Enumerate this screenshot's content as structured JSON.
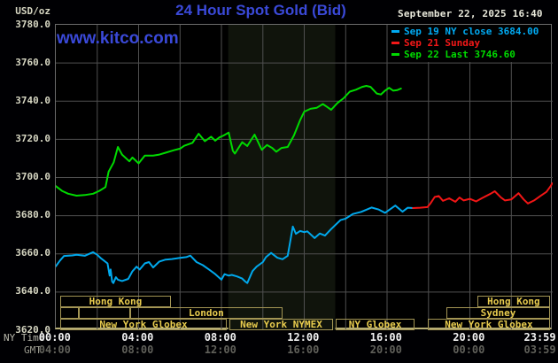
{
  "header": {
    "units_label": "USD/oz",
    "title": "24 Hour Spot Gold (Bid)",
    "datetime": "September 22, 2025 16:40",
    "watermark": "www.kitco.com"
  },
  "legend": [
    {
      "label": "Sep 19 NY close 3684.00",
      "color": "#00aaf2"
    },
    {
      "label": "Sep 21 Sunday",
      "color": "#f21818"
    },
    {
      "label": "Sep 22 Last 3746.60",
      "color": "#00db00"
    }
  ],
  "x_axis": {
    "ny_label": "NY Time",
    "gmt_label": "GMT",
    "ny_ticks": [
      {
        "hour": 0,
        "label": "00:00"
      },
      {
        "hour": 4,
        "label": "04:00"
      },
      {
        "hour": 8,
        "label": "08:00"
      },
      {
        "hour": 12,
        "label": "12:00"
      },
      {
        "hour": 16,
        "label": "16:00"
      },
      {
        "hour": 20,
        "label": "20:00"
      },
      {
        "hour": 23.983,
        "label": "23:59"
      }
    ],
    "gmt_ticks": [
      {
        "hour": 0,
        "label": "04:00"
      },
      {
        "hour": 4,
        "label": "08:00"
      },
      {
        "hour": 8,
        "label": "12:00"
      },
      {
        "hour": 12,
        "label": "16:00"
      },
      {
        "hour": 16,
        "label": "20:00"
      },
      {
        "hour": 20,
        "label": "00:00"
      },
      {
        "hour": 23.983,
        "label": "03:59"
      }
    ]
  },
  "sessions": [
    {
      "row": 0,
      "label": "Hong Kong",
      "start": 0.21,
      "end": 5.56
    },
    {
      "row": 0,
      "label": "Hong Kong",
      "start": 20.36,
      "end": 23.87
    },
    {
      "row": 1,
      "label": "",
      "start": 0.21,
      "end": 1.11
    },
    {
      "row": 1,
      "label": "",
      "start": 1.11,
      "end": 3.59
    },
    {
      "row": 1,
      "label": "London",
      "start": 3.59,
      "end": 10.95
    },
    {
      "row": 1,
      "label": "Sydney",
      "start": 18.87,
      "end": 23.87
    },
    {
      "row": 2,
      "label": "New York Globex",
      "start": 0.21,
      "end": 8.26
    },
    {
      "row": 2,
      "label": "New York NYMEX",
      "start": 8.39,
      "end": 13.39
    },
    {
      "row": 2,
      "label": "NY Globex",
      "start": 13.52,
      "end": 17.33
    },
    {
      "row": 2,
      "label": "New York Globex",
      "start": 17.97,
      "end": 23.87
    }
  ],
  "chart_data": {
    "type": "line",
    "title": "24 Hour Spot Gold (Bid)",
    "ylabel": "USD/oz",
    "ylim": [
      3620,
      3780
    ],
    "y_tick_step": 20,
    "xlim_hours": [
      0,
      24
    ],
    "x_gridline_step_hours": 2,
    "grid_color": "#4f4f4f",
    "highlight_band_hours": [
      8.33,
      13.5
    ],
    "highlight_band_color": "#10140c",
    "legend_position": "top-right",
    "series": [
      {
        "name": "Sep 19 NY close 3684.00",
        "color": "#00a8ec",
        "points": [
          [
            0.0,
            3653.5
          ],
          [
            0.2,
            3656.5
          ],
          [
            0.4,
            3658.9
          ],
          [
            0.8,
            3659.2
          ],
          [
            1.0,
            3659.5
          ],
          [
            1.4,
            3659.0
          ],
          [
            1.8,
            3660.9
          ],
          [
            2.0,
            3659.5
          ],
          [
            2.2,
            3657.5
          ],
          [
            2.5,
            3655.0
          ],
          [
            2.6,
            3648.6
          ],
          [
            2.65,
            3651.8
          ],
          [
            2.72,
            3645.5
          ],
          [
            2.78,
            3644.7
          ],
          [
            2.9,
            3647.8
          ],
          [
            3.0,
            3646.5
          ],
          [
            3.2,
            3645.8
          ],
          [
            3.5,
            3646.9
          ],
          [
            3.7,
            3650.9
          ],
          [
            3.9,
            3653.3
          ],
          [
            4.05,
            3651.8
          ],
          [
            4.3,
            3655.0
          ],
          [
            4.5,
            3655.7
          ],
          [
            4.7,
            3652.9
          ],
          [
            5.0,
            3656.0
          ],
          [
            5.3,
            3657.0
          ],
          [
            5.6,
            3657.3
          ],
          [
            6.0,
            3657.9
          ],
          [
            6.3,
            3658.3
          ],
          [
            6.5,
            3659.1
          ],
          [
            6.8,
            3655.7
          ],
          [
            7.1,
            3654.1
          ],
          [
            7.4,
            3651.8
          ],
          [
            7.7,
            3649.4
          ],
          [
            8.0,
            3646.5
          ],
          [
            8.15,
            3649.4
          ],
          [
            8.35,
            3648.6
          ],
          [
            8.5,
            3649.0
          ],
          [
            8.75,
            3648.2
          ],
          [
            9.0,
            3647.1
          ],
          [
            9.15,
            3645.5
          ],
          [
            9.25,
            3644.7
          ],
          [
            9.5,
            3651.0
          ],
          [
            9.7,
            3653.3
          ],
          [
            10.0,
            3655.7
          ],
          [
            10.15,
            3658.3
          ],
          [
            10.4,
            3660.5
          ],
          [
            10.7,
            3658.0
          ],
          [
            10.95,
            3657.2
          ],
          [
            11.2,
            3659.0
          ],
          [
            11.3,
            3665.0
          ],
          [
            11.45,
            3674.3
          ],
          [
            11.6,
            3670.5
          ],
          [
            11.8,
            3672.0
          ],
          [
            12.0,
            3671.4
          ],
          [
            12.15,
            3671.8
          ],
          [
            12.5,
            3668.3
          ],
          [
            12.75,
            3670.7
          ],
          [
            13.0,
            3669.6
          ],
          [
            13.3,
            3673.0
          ],
          [
            13.75,
            3677.7
          ],
          [
            14.0,
            3678.5
          ],
          [
            14.35,
            3680.9
          ],
          [
            14.75,
            3682.0
          ],
          [
            15.25,
            3684.3
          ],
          [
            15.6,
            3683.2
          ],
          [
            15.9,
            3681.5
          ],
          [
            16.4,
            3685.3
          ],
          [
            16.75,
            3682.1
          ],
          [
            17.0,
            3684.2
          ],
          [
            17.25,
            3684.0
          ]
        ]
      },
      {
        "name": "Sep 21 Sunday",
        "color": "#f21616",
        "points": [
          [
            17.25,
            3684.0
          ],
          [
            17.6,
            3684.2
          ],
          [
            17.95,
            3684.5
          ],
          [
            18.1,
            3686.5
          ],
          [
            18.3,
            3689.8
          ],
          [
            18.5,
            3690.3
          ],
          [
            18.7,
            3687.8
          ],
          [
            19.0,
            3689.1
          ],
          [
            19.3,
            3687.3
          ],
          [
            19.5,
            3689.5
          ],
          [
            19.7,
            3688.0
          ],
          [
            20.0,
            3688.8
          ],
          [
            20.3,
            3687.5
          ],
          [
            20.6,
            3689.3
          ],
          [
            21.0,
            3691.5
          ],
          [
            21.2,
            3692.8
          ],
          [
            21.5,
            3689.5
          ],
          [
            21.7,
            3688.0
          ],
          [
            22.0,
            3688.5
          ],
          [
            22.35,
            3691.8
          ],
          [
            22.6,
            3688.5
          ],
          [
            22.8,
            3686.4
          ],
          [
            23.1,
            3688.0
          ],
          [
            23.4,
            3690.3
          ],
          [
            23.7,
            3692.5
          ],
          [
            23.9,
            3695.5
          ],
          [
            23.98,
            3697.0
          ]
        ]
      },
      {
        "name": "Sep 22 Last 3746.60",
        "color": "#00db00",
        "points": [
          [
            0.0,
            3695.5
          ],
          [
            0.3,
            3693.0
          ],
          [
            0.6,
            3691.5
          ],
          [
            1.0,
            3690.5
          ],
          [
            1.4,
            3690.8
          ],
          [
            1.8,
            3691.5
          ],
          [
            2.1,
            3693.0
          ],
          [
            2.4,
            3695.0
          ],
          [
            2.55,
            3703.0
          ],
          [
            2.8,
            3708.0
          ],
          [
            3.0,
            3716.0
          ],
          [
            3.2,
            3712.0
          ],
          [
            3.55,
            3708.5
          ],
          [
            3.7,
            3710.5
          ],
          [
            4.0,
            3707.4
          ],
          [
            4.3,
            3711.5
          ],
          [
            4.7,
            3711.5
          ],
          [
            5.0,
            3712.0
          ],
          [
            5.3,
            3713.0
          ],
          [
            5.7,
            3714.3
          ],
          [
            6.0,
            3715.1
          ],
          [
            6.2,
            3716.6
          ],
          [
            6.6,
            3718.2
          ],
          [
            6.9,
            3722.9
          ],
          [
            7.2,
            3719.0
          ],
          [
            7.5,
            3721.4
          ],
          [
            7.7,
            3719.3
          ],
          [
            7.9,
            3721.0
          ],
          [
            8.1,
            3722.0
          ],
          [
            8.35,
            3723.5
          ],
          [
            8.55,
            3714.0
          ],
          [
            8.65,
            3712.5
          ],
          [
            9.0,
            3718.5
          ],
          [
            9.25,
            3716.5
          ],
          [
            9.6,
            3722.5
          ],
          [
            9.95,
            3714.5
          ],
          [
            10.2,
            3717.0
          ],
          [
            10.45,
            3715.5
          ],
          [
            10.65,
            3713.5
          ],
          [
            10.9,
            3715.5
          ],
          [
            11.2,
            3716.0
          ],
          [
            11.5,
            3722.0
          ],
          [
            11.8,
            3730.0
          ],
          [
            12.0,
            3734.5
          ],
          [
            12.3,
            3736.0
          ],
          [
            12.6,
            3736.5
          ],
          [
            12.9,
            3738.5
          ],
          [
            13.1,
            3737.0
          ],
          [
            13.3,
            3735.5
          ],
          [
            13.6,
            3739.0
          ],
          [
            13.9,
            3741.5
          ],
          [
            14.2,
            3745.0
          ],
          [
            14.5,
            3746.0
          ],
          [
            14.8,
            3747.5
          ],
          [
            15.0,
            3748.0
          ],
          [
            15.2,
            3747.5
          ],
          [
            15.5,
            3744.0
          ],
          [
            15.7,
            3743.5
          ],
          [
            15.9,
            3745.5
          ],
          [
            16.1,
            3747.0
          ],
          [
            16.3,
            3745.5
          ],
          [
            16.5,
            3745.8
          ],
          [
            16.67,
            3746.6
          ]
        ]
      }
    ]
  }
}
